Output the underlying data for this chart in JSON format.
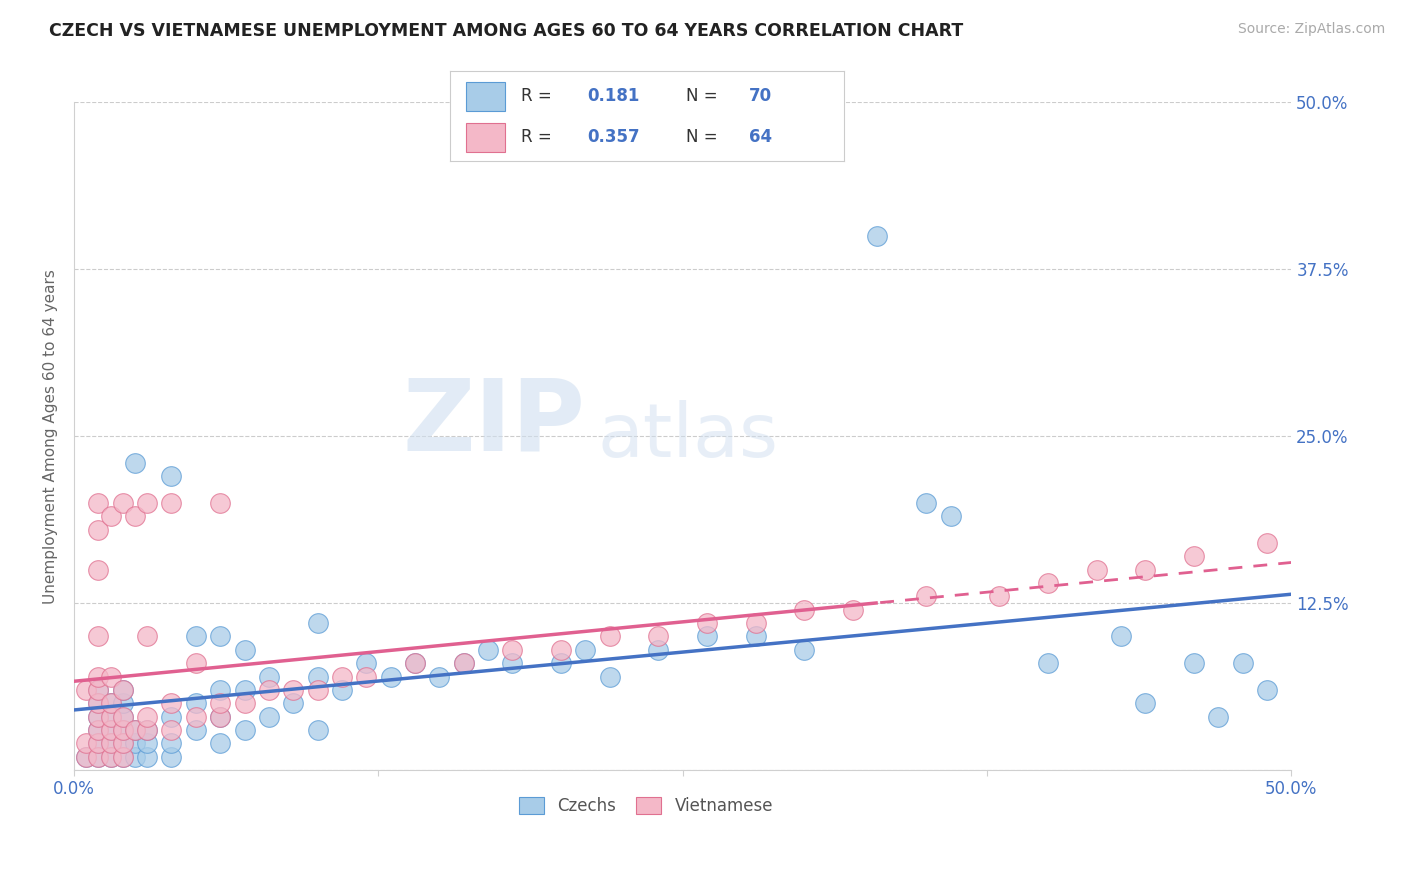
{
  "title": "CZECH VS VIETNAMESE UNEMPLOYMENT AMONG AGES 60 TO 64 YEARS CORRELATION CHART",
  "source": "Source: ZipAtlas.com",
  "ylabel": "Unemployment Among Ages 60 to 64 years",
  "xlim": [
    0,
    0.5
  ],
  "ylim": [
    0,
    0.5
  ],
  "xticks": [
    0.0,
    0.125,
    0.25,
    0.375,
    0.5
  ],
  "xtick_labels": [
    "0.0%",
    "",
    "",
    "",
    "50.0%"
  ],
  "ytick_labels_right": [
    "",
    "12.5%",
    "25.0%",
    "37.5%",
    "50.0%"
  ],
  "yticks": [
    0.0,
    0.125,
    0.25,
    0.375,
    0.5
  ],
  "legend_line1": [
    "R = ",
    " 0.181",
    "  N = ",
    "70"
  ],
  "legend_line2": [
    "R = ",
    "0.357",
    "  N = ",
    "64"
  ],
  "blue_color": "#a8cce8",
  "blue_edge_color": "#5b9bd5",
  "pink_color": "#f4b8c8",
  "pink_edge_color": "#e07090",
  "blue_line_color": "#4472c4",
  "pink_line_color": "#e06090",
  "watermark_zip": "ZIP",
  "watermark_atlas": "atlas",
  "blue_x": [
    0.005,
    0.01,
    0.01,
    0.01,
    0.01,
    0.01,
    0.01,
    0.015,
    0.015,
    0.015,
    0.015,
    0.015,
    0.02,
    0.02,
    0.02,
    0.02,
    0.02,
    0.02,
    0.025,
    0.025,
    0.025,
    0.025,
    0.03,
    0.03,
    0.03,
    0.04,
    0.04,
    0.04,
    0.04,
    0.05,
    0.05,
    0.05,
    0.06,
    0.06,
    0.06,
    0.06,
    0.07,
    0.07,
    0.07,
    0.08,
    0.08,
    0.09,
    0.1,
    0.1,
    0.1,
    0.11,
    0.12,
    0.13,
    0.14,
    0.15,
    0.16,
    0.17,
    0.18,
    0.2,
    0.21,
    0.22,
    0.24,
    0.26,
    0.28,
    0.3,
    0.33,
    0.35,
    0.36,
    0.4,
    0.43,
    0.44,
    0.46,
    0.47,
    0.48,
    0.49
  ],
  "blue_y": [
    0.01,
    0.01,
    0.02,
    0.03,
    0.04,
    0.05,
    0.06,
    0.01,
    0.02,
    0.03,
    0.04,
    0.05,
    0.01,
    0.02,
    0.03,
    0.04,
    0.05,
    0.06,
    0.01,
    0.02,
    0.03,
    0.23,
    0.01,
    0.02,
    0.03,
    0.01,
    0.02,
    0.04,
    0.22,
    0.03,
    0.05,
    0.1,
    0.02,
    0.04,
    0.06,
    0.1,
    0.03,
    0.06,
    0.09,
    0.04,
    0.07,
    0.05,
    0.03,
    0.07,
    0.11,
    0.06,
    0.08,
    0.07,
    0.08,
    0.07,
    0.08,
    0.09,
    0.08,
    0.08,
    0.09,
    0.07,
    0.09,
    0.1,
    0.1,
    0.09,
    0.4,
    0.2,
    0.19,
    0.08,
    0.1,
    0.05,
    0.08,
    0.04,
    0.08,
    0.06
  ],
  "pink_x": [
    0.005,
    0.005,
    0.005,
    0.01,
    0.01,
    0.01,
    0.01,
    0.01,
    0.01,
    0.01,
    0.01,
    0.01,
    0.01,
    0.01,
    0.015,
    0.015,
    0.015,
    0.015,
    0.015,
    0.015,
    0.015,
    0.02,
    0.02,
    0.02,
    0.02,
    0.02,
    0.02,
    0.025,
    0.025,
    0.03,
    0.03,
    0.03,
    0.03,
    0.04,
    0.04,
    0.04,
    0.05,
    0.05,
    0.06,
    0.06,
    0.06,
    0.07,
    0.08,
    0.09,
    0.1,
    0.11,
    0.12,
    0.14,
    0.16,
    0.18,
    0.2,
    0.22,
    0.24,
    0.26,
    0.28,
    0.3,
    0.32,
    0.35,
    0.38,
    0.4,
    0.42,
    0.44,
    0.46,
    0.49
  ],
  "pink_y": [
    0.01,
    0.02,
    0.06,
    0.01,
    0.02,
    0.03,
    0.04,
    0.05,
    0.06,
    0.07,
    0.1,
    0.15,
    0.18,
    0.2,
    0.01,
    0.02,
    0.03,
    0.04,
    0.05,
    0.07,
    0.19,
    0.01,
    0.02,
    0.03,
    0.04,
    0.06,
    0.2,
    0.03,
    0.19,
    0.03,
    0.04,
    0.1,
    0.2,
    0.03,
    0.05,
    0.2,
    0.04,
    0.08,
    0.04,
    0.05,
    0.2,
    0.05,
    0.06,
    0.06,
    0.06,
    0.07,
    0.07,
    0.08,
    0.08,
    0.09,
    0.09,
    0.1,
    0.1,
    0.11,
    0.11,
    0.12,
    0.12,
    0.13,
    0.13,
    0.14,
    0.15,
    0.15,
    0.16,
    0.17
  ]
}
